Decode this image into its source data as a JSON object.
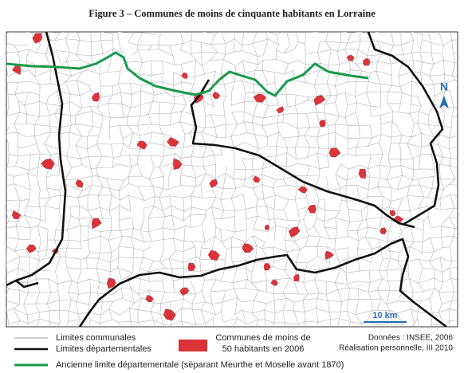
{
  "title": "Figure 3 – Communes de moins de cinquante habitants en Lorraine",
  "map": {
    "north_label": "N",
    "scale_label": "10 km"
  },
  "legend": {
    "items": [
      {
        "label": "Limites communales"
      },
      {
        "label": "Limites départementales"
      },
      {
        "label_lines": [
          "Communes de moins de",
          "50 habitants en 2006"
        ]
      },
      {
        "label": "Ancienne limite départementale (séparant Meurthe et Moselle avant 1870)"
      }
    ]
  },
  "source": [
    "Données : INSEE, 2006",
    "Réalisation personnelle, III 2010"
  ]
}
